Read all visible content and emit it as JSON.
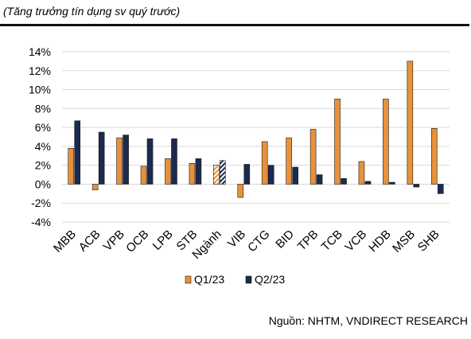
{
  "title": "(Tăng trưởng tín dụng sv quý trước)",
  "source": "Nguồn: NHTM, VNDIRECT RESEARCH",
  "colors": {
    "q1": "#E8913A",
    "q2": "#1B2A4E",
    "grid": "#D9D9D9",
    "rule": "#111111"
  },
  "chart_data": {
    "type": "bar",
    "categories": [
      "MBB",
      "ACB",
      "VPB",
      "OCB",
      "LPB",
      "STB",
      "Ngành",
      "VIB",
      "CTG",
      "BID",
      "TPB",
      "TCB",
      "VCB",
      "HDB",
      "MSB",
      "SHB"
    ],
    "series": [
      {
        "name": "Q1/23",
        "values": [
          3.8,
          -0.6,
          4.9,
          1.9,
          2.7,
          2.2,
          2.0,
          -1.4,
          4.5,
          4.9,
          5.8,
          9.0,
          2.4,
          9.0,
          13.0,
          5.9
        ]
      },
      {
        "name": "Q2/23",
        "values": [
          6.7,
          5.5,
          5.2,
          4.8,
          4.8,
          2.7,
          2.5,
          2.1,
          2.0,
          1.8,
          1.0,
          0.6,
          0.3,
          0.2,
          -0.3,
          -1.0
        ]
      }
    ],
    "highlight_category": "Ngành",
    "ylim": [
      -4,
      14
    ],
    "yticks": [
      -4,
      -2,
      0,
      2,
      4,
      6,
      8,
      10,
      12,
      14
    ],
    "ytick_labels": [
      "-4%",
      "-2%",
      "0%",
      "2%",
      "4%",
      "6%",
      "8%",
      "10%",
      "12%",
      "14%"
    ],
    "grid": true,
    "legend_position": "bottom-center"
  }
}
